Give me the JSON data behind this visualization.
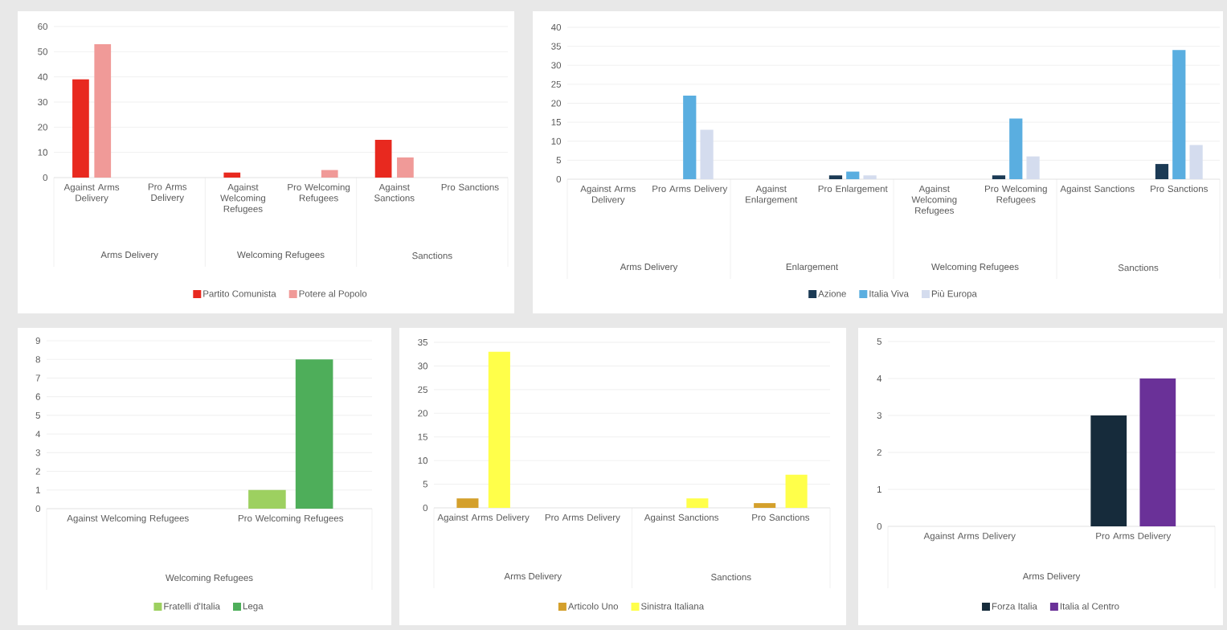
{
  "chart_data": [
    {
      "type": "bar",
      "categories": [
        "Against Arms Delivery",
        "Pro Arms Delivery",
        "Against Welcoming Refugees",
        "Pro Welcoming Refugees",
        "Against Sanctions",
        "Pro Sanctions"
      ],
      "series": [
        {
          "name": "Partito Comunista",
          "color": "#e8291f",
          "values": [
            39,
            0,
            2,
            0,
            15,
            0
          ]
        },
        {
          "name": "Potere al Popolo",
          "color": "#f09a98",
          "values": [
            53,
            0,
            0,
            3,
            8,
            0
          ]
        }
      ],
      "ylim": [
        0,
        60
      ],
      "yticks": [
        0,
        10,
        20,
        30,
        40,
        50,
        60
      ],
      "grid": "y",
      "legend": "bottom",
      "annotations": [
        "Arms Delivery",
        "Welcoming Refugees",
        "Sanctions"
      ]
    },
    {
      "type": "bar",
      "categories": [
        "Against Arms Delivery",
        "Pro Arms Delivery",
        "Against Enlargement",
        "Pro Enlargement",
        "Against Welcoming Refugees",
        "Pro Welcoming Refugees",
        "Against Sanctions",
        "Pro Sanctions"
      ],
      "series": [
        {
          "name": "Azione",
          "color": "#1b3a55",
          "values": [
            0,
            0,
            0,
            1,
            0,
            1,
            0,
            4
          ]
        },
        {
          "name": "Italia Viva",
          "color": "#5aaee0",
          "values": [
            0,
            22,
            0,
            2,
            0,
            16,
            0,
            34
          ]
        },
        {
          "name": "Più Europa",
          "color": "#d4dcee",
          "values": [
            0,
            13,
            0,
            1,
            0,
            6,
            0,
            9
          ]
        }
      ],
      "ylim": [
        0,
        40
      ],
      "yticks": [
        0,
        5,
        10,
        15,
        20,
        25,
        30,
        35,
        40
      ],
      "grid": "y",
      "legend": "bottom",
      "annotations": [
        "Arms Delivery",
        "Enlargement",
        "Welcoming Refugees",
        "Sanctions"
      ]
    },
    {
      "type": "bar",
      "categories": [
        "Against Welcoming Refugees",
        "Pro Welcoming Refugees"
      ],
      "series": [
        {
          "name": "Fratelli d'Italia",
          "color": "#9dd060",
          "values": [
            0,
            1
          ]
        },
        {
          "name": "Lega",
          "color": "#4eae5a",
          "values": [
            0,
            8
          ]
        }
      ],
      "ylim": [
        0,
        9
      ],
      "yticks": [
        0,
        1,
        2,
        3,
        4,
        5,
        6,
        7,
        8,
        9
      ],
      "grid": "y",
      "legend": "bottom",
      "annotations": [
        "Welcoming Refugees"
      ]
    },
    {
      "type": "bar",
      "categories": [
        "Against Arms Delivery",
        "Pro Arms Delivery",
        "Against Sanctions",
        "Pro Sanctions"
      ],
      "series": [
        {
          "name": "Articolo Uno",
          "color": "#d4a02c",
          "values": [
            2,
            0,
            0,
            1
          ]
        },
        {
          "name": "Sinistra Italiana",
          "color": "#ffff4a",
          "values": [
            33,
            0,
            2,
            7
          ]
        }
      ],
      "ylim": [
        0,
        35
      ],
      "yticks": [
        0,
        5,
        10,
        15,
        20,
        25,
        30,
        35
      ],
      "grid": "y",
      "legend": "bottom",
      "annotations": [
        "Arms Delivery",
        "Sanctions"
      ]
    },
    {
      "type": "bar",
      "categories": [
        "Against Arms Delivery",
        "Pro Arms Delivery"
      ],
      "series": [
        {
          "name": "Forza Italia",
          "color": "#162b3b",
          "values": [
            0,
            3
          ]
        },
        {
          "name": "Italia al Centro",
          "color": "#6a3198",
          "values": [
            0,
            4
          ]
        }
      ],
      "ylim": [
        0,
        5
      ],
      "yticks": [
        0,
        1,
        2,
        3,
        4,
        5
      ],
      "grid": "y",
      "legend": "bottom",
      "annotations": [
        "Arms Delivery"
      ]
    }
  ]
}
